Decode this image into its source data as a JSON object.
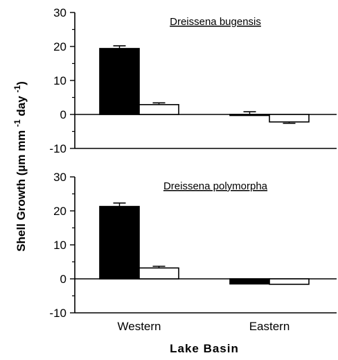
{
  "colors": {
    "filled": "#000000",
    "open": "#ffffff",
    "axis": "#000000"
  },
  "chart_data": [
    {
      "type": "bar",
      "title": "Dreissena bugensis",
      "categories": [
        "Western",
        "Eastern"
      ],
      "ylim": [
        -10,
        30
      ],
      "yticks": [
        "30",
        "20",
        "10",
        "0",
        "-10"
      ],
      "series": [
        {
          "fill": "filled",
          "values": [
            19.4,
            0
          ],
          "errors": [
            0.8,
            0.8
          ]
        },
        {
          "fill": "open",
          "values": [
            2.9,
            -2.2
          ],
          "errors": [
            0.5,
            0.4
          ]
        }
      ],
      "grid": false
    },
    {
      "type": "bar",
      "title": "Dreissena polymorpha",
      "categories": [
        "Western",
        "Eastern"
      ],
      "ylim": [
        -10,
        30
      ],
      "yticks": [
        "30",
        "20",
        "10",
        "0",
        "-10"
      ],
      "series": [
        {
          "fill": "filled",
          "values": [
            21.3,
            -1.5
          ],
          "errors": [
            1.0,
            0
          ]
        },
        {
          "fill": "open",
          "values": [
            3.2,
            -1.6
          ],
          "errors": [
            0.5,
            0
          ]
        }
      ],
      "grid": false
    }
  ],
  "axes": {
    "ylabel": "Shell Growth (µm mm -1 day -1 )",
    "ylabel_parts": [
      "Shell Growth (",
      "µ",
      "m mm ",
      "-1",
      " day ",
      "-1",
      ")"
    ],
    "xlabel": "Lake Basin",
    "categories": [
      "Western",
      "Eastern"
    ]
  }
}
